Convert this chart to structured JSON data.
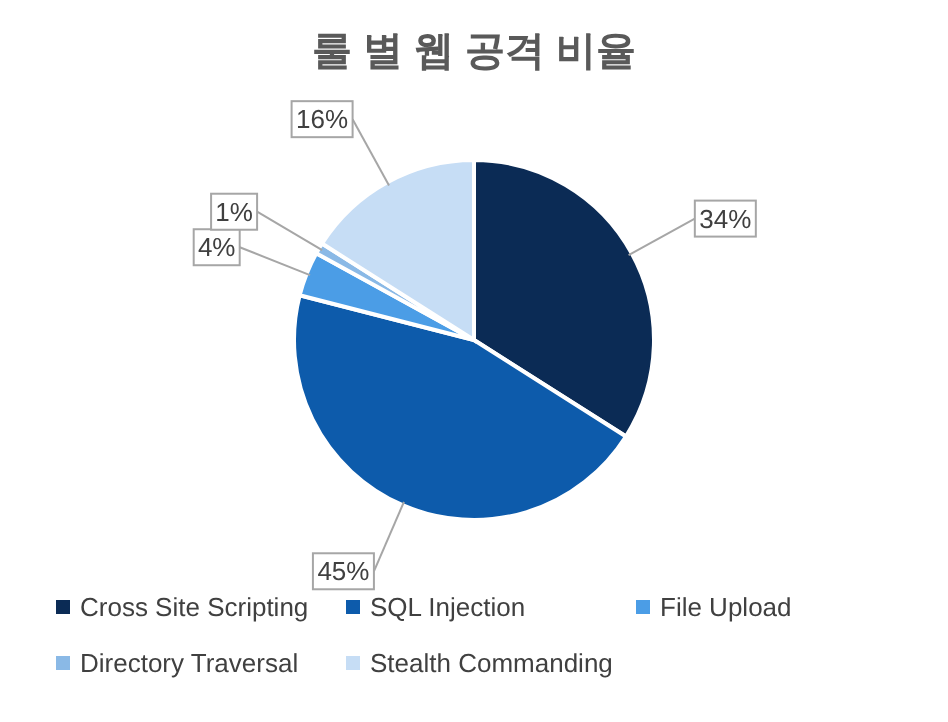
{
  "chart_data": {
    "type": "pie",
    "title": "룰 별 웹 공격 비율",
    "categories": [
      "Cross Site Scripting",
      "SQL Injection",
      "File Upload",
      "Directory Traversal",
      "Stealth Commanding"
    ],
    "values": [
      34,
      45,
      4,
      1,
      16
    ],
    "value_labels": [
      "34%",
      "45%",
      "4%",
      "1%",
      "16%"
    ],
    "colors": [
      "#0b2b55",
      "#0d5bab",
      "#4b9de6",
      "#8ab9e6",
      "#c6ddf5"
    ],
    "legend": "bottom"
  }
}
